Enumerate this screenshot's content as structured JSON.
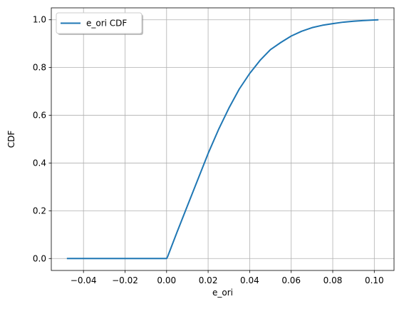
{
  "chart_data": {
    "type": "line",
    "title": "",
    "xlabel": "e_ori",
    "ylabel": "CDF",
    "xlim": [
      -0.0555,
      0.1095
    ],
    "ylim": [
      -0.05,
      1.05
    ],
    "xticks": [
      -0.04,
      -0.02,
      0.0,
      0.02,
      0.04,
      0.06,
      0.08,
      0.1
    ],
    "xtick_labels": [
      "−0.04",
      "−0.02",
      "0.00",
      "0.02",
      "0.04",
      "0.06",
      "0.08",
      "0.10"
    ],
    "yticks": [
      0.0,
      0.2,
      0.4,
      0.6,
      0.8,
      1.0
    ],
    "ytick_labels": [
      "0.0",
      "0.2",
      "0.4",
      "0.6",
      "0.8",
      "1.0"
    ],
    "grid": true,
    "legend_position": "top-left",
    "series": [
      {
        "name": "e_ori CDF",
        "color": "#1f77b4",
        "x": [
          -0.048,
          -0.03,
          -0.01,
          0.0,
          0.0005,
          0.005,
          0.01,
          0.015,
          0.02,
          0.025,
          0.03,
          0.035,
          0.04,
          0.045,
          0.05,
          0.055,
          0.06,
          0.065,
          0.07,
          0.075,
          0.08,
          0.085,
          0.09,
          0.095,
          0.1,
          0.102
        ],
        "y": [
          0.0,
          0.0,
          0.0,
          0.0,
          0.008,
          0.11,
          0.22,
          0.33,
          0.44,
          0.54,
          0.63,
          0.71,
          0.775,
          0.83,
          0.875,
          0.905,
          0.932,
          0.952,
          0.967,
          0.977,
          0.984,
          0.99,
          0.994,
          0.997,
          0.999,
          1.0
        ]
      }
    ]
  }
}
